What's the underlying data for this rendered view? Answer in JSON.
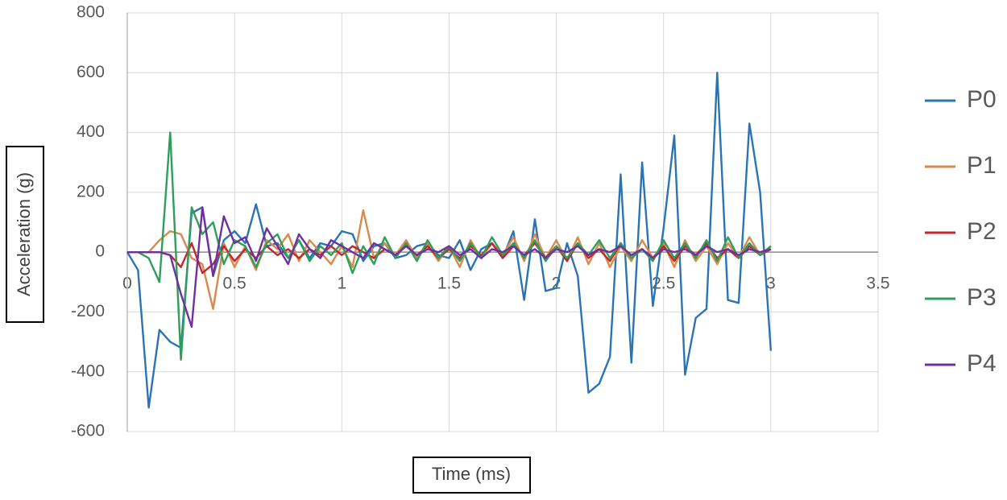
{
  "chart_data": {
    "type": "line",
    "x_label": "Time (ms)",
    "y_label": "Acceleration (g)",
    "x": [
      0,
      0.05,
      0.1,
      0.15,
      0.2,
      0.25,
      0.3,
      0.35,
      0.4,
      0.45,
      0.5,
      0.55,
      0.6,
      0.65,
      0.7,
      0.75,
      0.8,
      0.85,
      0.9,
      0.95,
      1,
      1.05,
      1.1,
      1.15,
      1.2,
      1.25,
      1.3,
      1.35,
      1.4,
      1.45,
      1.5,
      1.55,
      1.6,
      1.65,
      1.7,
      1.75,
      1.8,
      1.85,
      1.9,
      1.95,
      2,
      2.05,
      2.1,
      2.15,
      2.2,
      2.25,
      2.3,
      2.35,
      2.4,
      2.45,
      2.5,
      2.55,
      2.6,
      2.65,
      2.7,
      2.75,
      2.8,
      2.85,
      2.9,
      2.95,
      3
    ],
    "series": [
      {
        "name": "P0",
        "color": "#2b74b4",
        "values": [
          0,
          -60,
          -520,
          -260,
          -300,
          -320,
          130,
          150,
          -80,
          40,
          70,
          30,
          160,
          20,
          30,
          -20,
          40,
          -20,
          30,
          20,
          70,
          60,
          -30,
          20,
          30,
          -20,
          -10,
          20,
          30,
          -10,
          -20,
          40,
          -60,
          10,
          30,
          -20,
          70,
          -160,
          110,
          -130,
          -120,
          30,
          -80,
          -470,
          -440,
          -350,
          260,
          -370,
          300,
          -180,
          80,
          390,
          -410,
          -220,
          -190,
          600,
          -160,
          -170,
          430,
          200,
          -330
        ]
      },
      {
        "name": "P1",
        "color": "#d8894b",
        "values": [
          0,
          0,
          0,
          40,
          70,
          60,
          -20,
          -40,
          -190,
          30,
          -50,
          20,
          -60,
          40,
          10,
          60,
          -30,
          40,
          0,
          -40,
          20,
          -50,
          140,
          -20,
          30,
          -10,
          40,
          -20,
          30,
          -30,
          20,
          -50,
          40,
          -20,
          30,
          -10,
          50,
          -30,
          60,
          -20,
          40,
          -30,
          50,
          -40,
          30,
          -50,
          20,
          -30,
          40,
          -20,
          30,
          -50,
          40,
          -30,
          20,
          -40,
          30,
          -20,
          50,
          -10,
          20
        ]
      },
      {
        "name": "P2",
        "color": "#c0282d",
        "values": [
          0,
          0,
          0,
          0,
          -10,
          -50,
          30,
          -70,
          -40,
          20,
          -30,
          10,
          -20,
          20,
          -10,
          10,
          -20,
          10,
          -10,
          20,
          -10,
          20,
          0,
          -20,
          10,
          -10,
          20,
          -10,
          20,
          -20,
          10,
          -20,
          20,
          -10,
          30,
          -20,
          20,
          -10,
          30,
          -20,
          20,
          -30,
          30,
          -20,
          10,
          -30,
          30,
          -20,
          10,
          -20,
          20,
          -30,
          20,
          -10,
          30,
          -20,
          10,
          -20,
          20,
          -10,
          10
        ]
      },
      {
        "name": "P3",
        "color": "#2e9e5b",
        "values": [
          0,
          0,
          -20,
          -100,
          400,
          -360,
          150,
          60,
          100,
          -40,
          40,
          20,
          -50,
          30,
          60,
          -20,
          40,
          -30,
          20,
          -10,
          30,
          -70,
          20,
          -40,
          50,
          -20,
          30,
          -30,
          40,
          -20,
          20,
          -30,
          30,
          -20,
          50,
          -10,
          30,
          -20,
          40,
          -30,
          20,
          -20,
          30,
          -10,
          40,
          -20,
          30,
          -20,
          10,
          -30,
          40,
          -20,
          30,
          -20,
          40,
          -30,
          50,
          -20,
          30,
          -10,
          20
        ]
      },
      {
        "name": "P4",
        "color": "#7030a0",
        "values": [
          0,
          0,
          0,
          0,
          -10,
          -140,
          -250,
          150,
          -80,
          120,
          30,
          50,
          -30,
          80,
          20,
          -40,
          60,
          10,
          -20,
          40,
          20,
          0,
          -20,
          30,
          10,
          -10,
          20,
          -10,
          10,
          0,
          20,
          -10,
          10,
          -20,
          10,
          0,
          20,
          -10,
          10,
          -20,
          10,
          0,
          20,
          -10,
          10,
          0,
          20,
          -10,
          10,
          -20,
          10,
          0,
          10,
          -10,
          20,
          0,
          10,
          -10,
          10,
          0,
          10
        ]
      }
    ],
    "xlim": [
      0,
      3.5
    ],
    "xticks": [
      0,
      0.5,
      1,
      1.5,
      2,
      2.5,
      3,
      3.5
    ],
    "ylim": [
      -600,
      800
    ],
    "yticks": [
      -600,
      -400,
      -200,
      0,
      200,
      400,
      600,
      800
    ],
    "grid": true,
    "legend": "right"
  }
}
